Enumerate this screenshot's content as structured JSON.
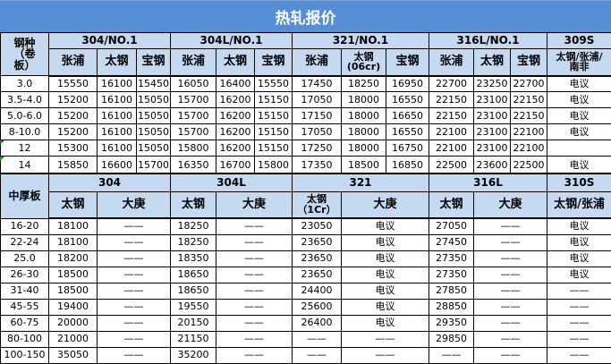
{
  "title": "热轧报价",
  "hot_rolled": {
    "corner": "钢种\n（卷\n板）",
    "groups": [
      "304/NO.1",
      "304L/NO.1",
      "321/NO.1",
      "316L/NO.1",
      "309S"
    ],
    "subheaders": [
      "张浦",
      "太钢",
      "宝钢",
      "张浦",
      "太钢",
      "宝钢",
      "张浦",
      "太钢\n(06cr)",
      "宝钢",
      "张浦",
      "太钢",
      "宝钢",
      "太钢/张浦/\n南非"
    ],
    "rows": [
      [
        "3.0",
        "15550",
        "16100",
        "15450",
        "16050",
        "16400",
        "15550",
        "17450",
        "18250",
        "16950",
        "22700",
        "23250",
        "22700",
        "电议"
      ],
      [
        "3.5-4.0",
        "15200",
        "16100",
        "15050",
        "15700",
        "16200",
        "15150",
        "17050",
        "18000",
        "16550",
        "22150",
        "23100",
        "22150",
        "电议"
      ],
      [
        "5.0-6.0",
        "15200",
        "16100",
        "15050",
        "15700",
        "16200",
        "15150",
        "17150",
        "18000",
        "16650",
        "22150",
        "23100",
        "22150",
        "电议"
      ],
      [
        "8-10.0",
        "15200",
        "16100",
        "15050",
        "15700",
        "16200",
        "15150",
        "17050",
        "18000",
        "16550",
        "22100",
        "23100",
        "22100",
        "电议"
      ],
      [
        "12",
        "15300",
        "16100",
        "15050",
        "15800",
        "16200",
        "15150",
        "17250",
        "18000",
        "16750",
        "22100",
        "23100",
        "22100",
        ""
      ],
      [
        "14",
        "15850",
        "16600",
        "15700",
        "16350",
        "16700",
        "15800",
        "17350",
        "18500",
        "16850",
        "22500",
        "23600",
        "22500",
        "电议"
      ]
    ]
  },
  "plate": {
    "corner": "中厚板",
    "groups": [
      "304",
      "304L",
      "321",
      "316L",
      "310S"
    ],
    "subheaders": [
      "太钢",
      "大庚",
      "太钢",
      "大庚",
      "太钢\n（1Cr）",
      "大庚",
      "太钢",
      "大庚",
      "太钢/张浦"
    ],
    "rows": [
      [
        "16-20",
        "18100",
        "——",
        "18250",
        "——",
        "23050",
        "电议",
        "27050",
        "——",
        "电议"
      ],
      [
        "22-24",
        "18100",
        "——",
        "18250",
        "——",
        "23650",
        "电议",
        "27450",
        "——",
        "电议"
      ],
      [
        "25.0",
        "18200",
        "——",
        "18350",
        "——",
        "23650",
        "电议",
        "27350",
        "——",
        "电议"
      ],
      [
        "26-30",
        "18500",
        "——",
        "18650",
        "——",
        "23650",
        "电议",
        "27350",
        "——",
        "电议"
      ],
      [
        "31-40",
        "18500",
        "——",
        "18650",
        "——",
        "24400",
        "电议",
        "27850",
        "——",
        "——"
      ],
      [
        "45-55",
        "19400",
        "——",
        "19550",
        "——",
        "25600",
        "电议",
        "28850",
        "——",
        "——"
      ],
      [
        "60-75",
        "20000",
        "——",
        "20150",
        "——",
        "26400",
        "电议",
        "29350",
        "——",
        "——"
      ],
      [
        "80-100",
        "21000",
        "——",
        "21150",
        "——",
        "——",
        "——",
        "29850",
        "——",
        "——"
      ],
      [
        "100-150",
        "35050",
        "——",
        "35200",
        "——",
        "——",
        "——",
        "——",
        "——",
        "——"
      ]
    ]
  },
  "colors": {
    "title_bg": "#558ed5",
    "header_bg": "#c5d9f1"
  }
}
